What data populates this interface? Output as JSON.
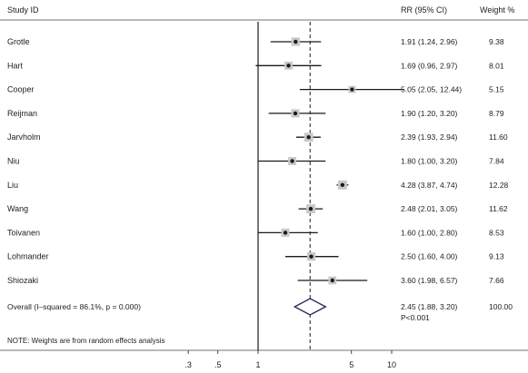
{
  "chart_data": {
    "type": "forest",
    "scale": "log",
    "headers": {
      "study": "Study ID",
      "effect": "RR (95% CI)",
      "weight": "Weight %"
    },
    "studies": [
      {
        "name": "Grotle",
        "rr": 1.91,
        "lo": 1.24,
        "hi": 2.96,
        "ci_text": "1.91 (1.24, 2.96)",
        "weight": 9.38,
        "weight_text": "9.38"
      },
      {
        "name": "Hart",
        "rr": 1.69,
        "lo": 0.96,
        "hi": 2.97,
        "ci_text": "1.69 (0.96, 2.97)",
        "weight": 8.01,
        "weight_text": "8.01"
      },
      {
        "name": "Cooper",
        "rr": 5.05,
        "lo": 2.05,
        "hi": 12.44,
        "ci_text": "5.05 (2.05, 12.44)",
        "weight": 5.15,
        "weight_text": "5.15"
      },
      {
        "name": "Reijman",
        "rr": 1.9,
        "lo": 1.2,
        "hi": 3.2,
        "ci_text": "1.90 (1.20, 3.20)",
        "weight": 8.79,
        "weight_text": "8.79"
      },
      {
        "name": "Jarvholm",
        "rr": 2.39,
        "lo": 1.93,
        "hi": 2.94,
        "ci_text": "2.39 (1.93, 2.94)",
        "weight": 11.6,
        "weight_text": "11.60"
      },
      {
        "name": "Niu",
        "rr": 1.8,
        "lo": 1.0,
        "hi": 3.2,
        "ci_text": "1.80 (1.00, 3.20)",
        "weight": 7.84,
        "weight_text": "7.84"
      },
      {
        "name": "Liu",
        "rr": 4.28,
        "lo": 3.87,
        "hi": 4.74,
        "ci_text": "4.28 (3.87, 4.74)",
        "weight": 12.28,
        "weight_text": "12.28"
      },
      {
        "name": "Wang",
        "rr": 2.48,
        "lo": 2.01,
        "hi": 3.05,
        "ci_text": "2.48 (2.01, 3.05)",
        "weight": 11.62,
        "weight_text": "11.62"
      },
      {
        "name": "Toivanen",
        "rr": 1.6,
        "lo": 1.0,
        "hi": 2.8,
        "ci_text": "1.60 (1.00, 2.80)",
        "weight": 8.53,
        "weight_text": "8.53"
      },
      {
        "name": "Lohmander",
        "rr": 2.5,
        "lo": 1.6,
        "hi": 4.0,
        "ci_text": "2.50 (1.60, 4.00)",
        "weight": 9.13,
        "weight_text": "9.13"
      },
      {
        "name": "Shiozaki",
        "rr": 3.6,
        "lo": 1.98,
        "hi": 6.57,
        "ci_text": "3.60 (1.98, 6.57)",
        "weight": 7.66,
        "weight_text": "7.66"
      }
    ],
    "overall": {
      "label": "Overall (I–squared = 86.1%, p = 0.000)",
      "rr": 2.45,
      "lo": 1.88,
      "hi": 3.2,
      "ci_text": "2.45 (1.88, 3.20)",
      "p_text": "P<0.001",
      "weight_text": "100.00"
    },
    "note": "NOTE: Weights are from random effects analysis",
    "x_ticks": [
      {
        "value": 0.3,
        "label": ".3"
      },
      {
        "value": 0.5,
        "label": ".5"
      },
      {
        "value": 1,
        "label": "1"
      },
      {
        "value": 5,
        "label": "5"
      },
      {
        "value": 10,
        "label": "10"
      }
    ],
    "null_line": 1,
    "overall_line": 2.45,
    "colors": {
      "ink": "#1a1a1a",
      "weight_box": "#c8c8c8",
      "diamond": "#2b2b5e"
    }
  }
}
